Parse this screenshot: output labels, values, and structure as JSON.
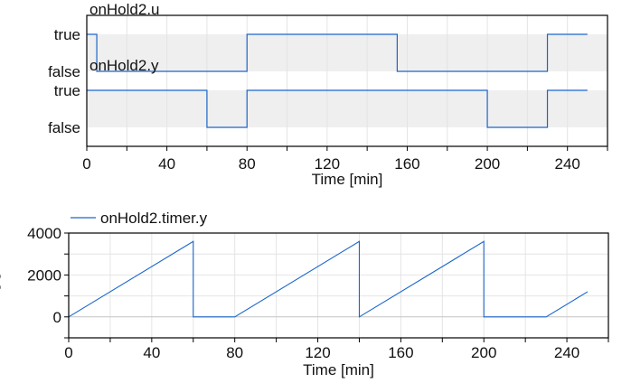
{
  "chart_data": [
    {
      "type": "line",
      "step": true,
      "xlabel": "Time [min]",
      "xlim": [
        0,
        260
      ],
      "xticks": [
        0,
        40,
        80,
        120,
        160,
        200,
        240
      ],
      "grid": true,
      "series": [
        {
          "name": "onHold2.u",
          "ytick_labels": [
            "true",
            "false"
          ],
          "x": [
            0,
            5,
            80,
            155,
            230,
            250
          ],
          "values": [
            true,
            false,
            true,
            false,
            true,
            true
          ]
        },
        {
          "name": "onHold2.y",
          "ytick_labels": [
            "true",
            "false"
          ],
          "x": [
            0,
            60,
            80,
            200,
            230,
            250
          ],
          "values": [
            true,
            false,
            true,
            false,
            true,
            true
          ]
        }
      ],
      "color": "#1a66cc"
    },
    {
      "type": "line",
      "xlabel": "Time [min]",
      "ylabel": "[s]",
      "xlim": [
        0,
        260
      ],
      "ylim": [
        -1000,
        4000
      ],
      "xticks": [
        0,
        40,
        80,
        120,
        160,
        200,
        240
      ],
      "yticks": [
        0,
        2000,
        4000
      ],
      "grid": true,
      "legend": "top-left",
      "series": [
        {
          "name": "onHold2.timer.y",
          "x": [
            0,
            60,
            60,
            80,
            140,
            140,
            200,
            200,
            230,
            250
          ],
          "values": [
            0,
            3600,
            0,
            0,
            3600,
            0,
            3600,
            0,
            0,
            1200
          ]
        }
      ],
      "color": "#1a66cc"
    }
  ]
}
